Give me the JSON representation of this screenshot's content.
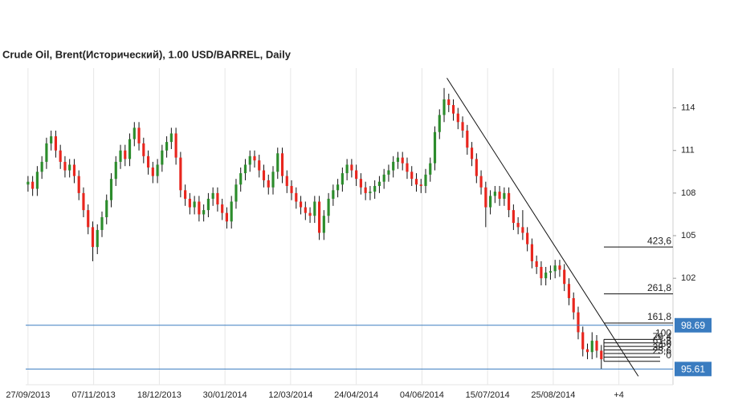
{
  "chart_data": {
    "type": "candlestick",
    "title": "Crude Oil, Brent(Исторический), 1.00 USD/BARREL, Daily",
    "up_color": "#2c8c2c",
    "down_color": "#e8261e",
    "ylim": [
      94.5,
      116.8
    ],
    "yticks": [
      102,
      105,
      108,
      111,
      114
    ],
    "xlim": [
      -0.5,
      139.5
    ],
    "xticks": [
      {
        "value": 0,
        "label": "27/09/2013"
      },
      {
        "value": 14.2,
        "label": "07/11/2013"
      },
      {
        "value": 28.4,
        "label": "18/12/2013"
      },
      {
        "value": 42.6,
        "label": "30/01/2014"
      },
      {
        "value": 56.8,
        "label": "12/03/2014"
      },
      {
        "value": 71,
        "label": "24/04/2014"
      },
      {
        "value": 85.2,
        "label": "04/06/2014"
      },
      {
        "value": 99.4,
        "label": "15/07/2014"
      },
      {
        "value": 113.6,
        "label": "25/08/2014"
      },
      {
        "value": 127.8,
        "label": "+4"
      }
    ],
    "grid": true,
    "open": [
      108.6,
      108.8,
      108.3,
      109.5,
      110.2,
      111.5,
      112.0,
      111.0,
      110.2,
      109.6,
      110.0,
      109.2,
      108.0,
      106.8,
      105.6,
      104.2,
      105.4,
      106.3,
      107.5,
      109.0,
      110.2,
      111.0,
      110.4,
      111.8,
      112.6,
      111.5,
      110.6,
      109.8,
      109.2,
      110.0,
      111.0,
      111.6,
      112.2,
      110.5,
      108.2,
      107.6,
      107.0,
      107.4,
      106.5,
      106.8,
      107.6,
      108.0,
      107.2,
      106.6,
      106.0,
      107.4,
      108.6,
      109.4,
      110.0,
      110.6,
      110.3,
      109.6,
      108.9,
      108.4,
      109.5,
      110.8,
      109.2,
      108.5,
      108.0,
      107.4,
      107.0,
      106.6,
      106.4,
      107.4,
      105.2,
      106.4,
      107.6,
      108.2,
      108.6,
      109.4,
      110.0,
      109.6,
      109.0,
      108.4,
      108.0,
      108.1,
      108.5,
      108.8,
      109.3,
      109.6,
      110.2,
      110.5,
      110.1,
      109.5,
      109.0,
      108.6,
      108.5,
      109.3,
      110.1,
      112.3,
      113.5,
      114.6,
      114.2,
      113.6,
      113.0,
      112.4,
      111.2,
      110.4,
      109.2,
      108.4,
      107.0,
      107.8,
      108.1,
      107.6,
      108.0,
      106.8,
      105.9,
      105.6,
      105.2,
      104.4,
      103.2,
      102.8,
      102.0,
      102.4,
      102.5,
      102.9,
      102.6,
      101.6,
      100.6,
      99.6,
      98.2,
      97.0,
      96.8,
      97.6,
      96.9
    ],
    "high": [
      109.2,
      109.2,
      109.9,
      110.6,
      111.9,
      112.4,
      112.4,
      111.4,
      110.6,
      110.4,
      110.4,
      109.6,
      108.4,
      107.2,
      106.0,
      105.8,
      106.7,
      107.9,
      109.4,
      110.6,
      111.4,
      111.4,
      112.2,
      113.0,
      113.0,
      111.9,
      111.0,
      110.2,
      110.4,
      111.4,
      112.0,
      112.6,
      112.6,
      110.9,
      108.6,
      108.0,
      107.8,
      107.8,
      107.2,
      108.0,
      108.4,
      108.4,
      107.6,
      107.0,
      107.8,
      109.0,
      109.8,
      110.4,
      111.0,
      111.0,
      110.7,
      110.0,
      109.3,
      109.9,
      111.2,
      111.2,
      109.6,
      108.9,
      108.4,
      107.8,
      107.4,
      107.0,
      107.8,
      107.8,
      106.8,
      108.0,
      108.6,
      109.0,
      109.8,
      110.4,
      110.4,
      110.0,
      109.4,
      108.8,
      108.5,
      108.9,
      109.2,
      109.7,
      110.0,
      110.6,
      110.9,
      110.9,
      110.5,
      109.9,
      109.4,
      109.0,
      109.7,
      110.5,
      112.7,
      113.9,
      115.4,
      115.0,
      114.6,
      114.0,
      113.4,
      112.8,
      111.6,
      110.8,
      109.6,
      108.8,
      108.2,
      108.5,
      108.5,
      108.4,
      108.4,
      107.2,
      106.3,
      106.8,
      105.6,
      104.8,
      103.6,
      103.2,
      102.8,
      102.9,
      103.3,
      103.3,
      103.0,
      102.0,
      101.0,
      100.0,
      98.6,
      97.4,
      98.2,
      98.0,
      97.3
    ],
    "low": [
      108.1,
      107.8,
      107.8,
      109.0,
      109.7,
      111.0,
      110.5,
      109.7,
      109.1,
      109.1,
      108.7,
      107.5,
      106.3,
      105.1,
      103.2,
      103.7,
      104.9,
      105.8,
      107.0,
      108.5,
      109.7,
      109.9,
      109.9,
      111.3,
      111.0,
      110.1,
      109.3,
      108.7,
      108.7,
      109.5,
      110.5,
      111.1,
      110.0,
      107.7,
      107.1,
      106.5,
      106.5,
      106.0,
      106.0,
      106.3,
      107.1,
      106.7,
      106.1,
      105.5,
      105.5,
      106.9,
      108.1,
      108.9,
      109.5,
      109.8,
      109.1,
      108.4,
      107.9,
      107.9,
      109.0,
      108.7,
      108.0,
      107.5,
      106.9,
      106.5,
      106.1,
      105.9,
      105.9,
      104.7,
      104.7,
      105.9,
      107.1,
      107.7,
      108.1,
      108.9,
      109.1,
      108.5,
      107.9,
      107.5,
      107.5,
      107.6,
      108.0,
      108.3,
      108.8,
      109.1,
      109.7,
      109.6,
      109.0,
      108.5,
      108.1,
      108.0,
      108.0,
      108.8,
      109.6,
      111.8,
      113.0,
      113.7,
      113.1,
      112.5,
      111.9,
      110.7,
      109.9,
      108.7,
      107.9,
      105.6,
      106.5,
      107.3,
      107.1,
      107.1,
      106.3,
      105.4,
      105.1,
      104.7,
      103.9,
      102.7,
      102.3,
      101.5,
      101.5,
      101.9,
      102.0,
      102.1,
      101.1,
      100.1,
      99.1,
      97.7,
      96.5,
      96.3,
      96.3,
      96.4,
      95.6
    ],
    "close": [
      108.8,
      108.3,
      109.5,
      110.2,
      111.5,
      112.0,
      111.0,
      110.2,
      109.6,
      110.0,
      109.2,
      108.0,
      106.8,
      105.6,
      104.2,
      105.4,
      106.3,
      107.5,
      109.0,
      110.2,
      111.0,
      110.4,
      111.8,
      112.6,
      111.5,
      110.6,
      109.8,
      109.2,
      110.0,
      111.0,
      111.6,
      112.2,
      110.5,
      108.2,
      107.6,
      107.0,
      107.4,
      106.5,
      106.8,
      107.6,
      108.0,
      107.2,
      106.6,
      106.0,
      107.4,
      108.6,
      109.4,
      110.0,
      110.6,
      110.3,
      109.6,
      108.9,
      108.4,
      109.5,
      110.8,
      109.2,
      108.5,
      108.0,
      107.4,
      107.0,
      106.6,
      106.4,
      107.4,
      105.2,
      106.4,
      107.6,
      108.2,
      108.6,
      109.4,
      110.0,
      109.6,
      109.0,
      108.4,
      108.0,
      108.1,
      108.5,
      108.8,
      109.3,
      109.6,
      110.2,
      110.5,
      110.1,
      109.5,
      109.0,
      108.6,
      108.5,
      109.3,
      110.1,
      112.3,
      113.5,
      114.6,
      114.2,
      113.6,
      113.0,
      112.4,
      111.2,
      110.4,
      109.2,
      108.4,
      107.0,
      107.8,
      108.1,
      107.6,
      108.0,
      106.8,
      105.9,
      105.6,
      105.2,
      104.4,
      103.2,
      102.8,
      102.0,
      102.4,
      102.5,
      102.9,
      102.6,
      101.6,
      100.6,
      99.6,
      98.2,
      97.0,
      96.8,
      97.6,
      96.9,
      96.3
    ],
    "price_lines": [
      98.69,
      95.61
    ],
    "price_line_color": "#3a7cc0",
    "trendline": {
      "x": [
        90.6,
        132
      ],
      "y": [
        116.1,
        95.1
      ]
    },
    "fib_levels": [
      {
        "label": "423,6",
        "value": 104.2
      },
      {
        "label": "261,8",
        "value": 100.9
      },
      {
        "label": "161,8",
        "value": 98.85
      },
      {
        "label": "100",
        "value": 97.7
      },
      {
        "label": "76,4",
        "value": 97.45
      },
      {
        "label": "61,8",
        "value": 97.2
      },
      {
        "label": "50",
        "value": 96.95
      },
      {
        "label": "38,2",
        "value": 96.7
      },
      {
        "label": "23,6",
        "value": 96.45
      },
      {
        "label": "0",
        "value": 96.15
      }
    ]
  }
}
